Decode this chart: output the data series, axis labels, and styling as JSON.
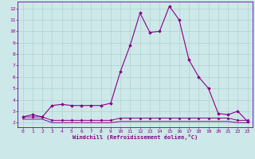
{
  "xlabel": "Windchill (Refroidissement éolien,°C)",
  "bg_color": "#cce8e8",
  "line_color": "#880088",
  "grid_color": "#aacccc",
  "spine_color": "#6600aa",
  "x_ticks": [
    0,
    1,
    2,
    3,
    4,
    5,
    6,
    7,
    8,
    9,
    10,
    11,
    12,
    13,
    14,
    15,
    16,
    17,
    18,
    19,
    20,
    21,
    22,
    23
  ],
  "y_ticks": [
    2,
    3,
    4,
    5,
    6,
    7,
    8,
    9,
    10,
    11,
    12
  ],
  "ylim": [
    1.6,
    12.6
  ],
  "xlim": [
    -0.5,
    23.5
  ],
  "series": [
    {
      "x": [
        0,
        1,
        2,
        3,
        4,
        5,
        6,
        7,
        8,
        9,
        10,
        11,
        12,
        13,
        14,
        15,
        16,
        17,
        18,
        19,
        20,
        21,
        22,
        23
      ],
      "y": [
        2.5,
        2.7,
        2.5,
        3.5,
        3.6,
        3.5,
        3.5,
        3.5,
        3.5,
        3.7,
        6.5,
        8.8,
        11.6,
        9.9,
        10.0,
        12.2,
        11.0,
        7.5,
        6.0,
        5.0,
        2.8,
        2.7,
        3.0,
        2.1
      ],
      "color": "#880088",
      "linewidth": 0.8,
      "marker": "D",
      "markersize": 1.8
    },
    {
      "x": [
        0,
        1,
        2,
        3,
        4,
        5,
        6,
        7,
        8,
        9,
        10,
        11,
        12,
        13,
        14,
        15,
        16,
        17,
        18,
        19,
        20,
        21,
        22,
        23
      ],
      "y": [
        2.5,
        2.5,
        2.5,
        2.2,
        2.2,
        2.2,
        2.2,
        2.2,
        2.2,
        2.2,
        2.4,
        2.4,
        2.4,
        2.4,
        2.4,
        2.4,
        2.4,
        2.4,
        2.4,
        2.4,
        2.4,
        2.4,
        2.2,
        2.2
      ],
      "color": "#880088",
      "linewidth": 0.7,
      "marker": "D",
      "markersize": 1.5
    },
    {
      "x": [
        0,
        1,
        2,
        3,
        4,
        5,
        6,
        7,
        8,
        9,
        10,
        11,
        12,
        13,
        14,
        15,
        16,
        17,
        18,
        19,
        20,
        21,
        22,
        23
      ],
      "y": [
        2.3,
        2.3,
        2.3,
        2.0,
        2.0,
        2.0,
        2.0,
        2.0,
        2.0,
        2.0,
        2.1,
        2.1,
        2.1,
        2.1,
        2.1,
        2.1,
        2.1,
        2.1,
        2.1,
        2.1,
        2.1,
        2.1,
        2.0,
        2.0
      ],
      "color": "#880088",
      "linewidth": 0.7,
      "marker": null,
      "markersize": 0
    }
  ]
}
